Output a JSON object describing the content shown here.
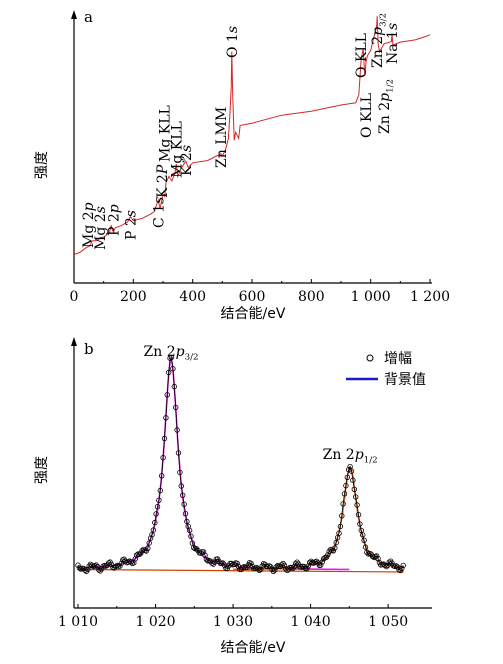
{
  "chart_data": [
    {
      "type": "line",
      "panel_label": "a",
      "ylabel": "强度",
      "xlabel": "结合能/eV",
      "xlim": [
        0,
        1200
      ],
      "xticks": [
        0,
        200,
        400,
        600,
        800,
        1000,
        1200
      ],
      "xtick_labels": [
        "0",
        "200",
        "400",
        "600",
        "800",
        "1 000",
        "1 200"
      ],
      "series_color": "#d62728",
      "x": [
        0,
        20,
        40,
        55,
        60,
        80,
        88,
        100,
        120,
        125,
        130,
        135,
        140,
        150,
        180,
        190,
        200,
        230,
        260,
        270,
        284,
        290,
        300,
        303,
        306,
        310,
        320,
        330,
        340,
        345,
        350,
        360,
        377,
        385,
        400,
        450,
        480,
        495,
        500,
        510,
        520,
        525,
        530,
        532,
        535,
        540,
        545,
        555,
        560,
        600,
        700,
        800,
        900,
        950,
        960,
        968,
        975,
        980,
        985,
        990,
        1000,
        1010,
        1020,
        1022,
        1025,
        1030,
        1045,
        1070,
        1072,
        1075,
        1100,
        1150,
        1180,
        1200
      ],
      "y": [
        0.04,
        0.06,
        0.08,
        0.1,
        0.12,
        0.13,
        0.14,
        0.15,
        0.17,
        0.22,
        0.18,
        0.19,
        0.2,
        0.21,
        0.23,
        0.27,
        0.24,
        0.26,
        0.28,
        0.3,
        0.36,
        0.32,
        0.39,
        0.4,
        0.38,
        0.47,
        0.5,
        0.48,
        0.52,
        0.58,
        0.5,
        0.55,
        0.59,
        0.56,
        0.58,
        0.6,
        0.62,
        0.64,
        0.62,
        0.66,
        0.72,
        0.86,
        1.02,
        1.24,
        0.98,
        0.72,
        0.76,
        0.73,
        0.8,
        0.82,
        0.86,
        0.89,
        0.92,
        0.94,
        0.98,
        1.2,
        1.25,
        1.1,
        1.18,
        1.22,
        1.24,
        1.32,
        1.38,
        1.45,
        1.28,
        1.24,
        1.28,
        1.3,
        1.34,
        1.28,
        1.29,
        1.31,
        1.32,
        1.34
      ],
      "annotations": [
        {
          "text": "Mg 2p",
          "x": 48
        },
        {
          "text": "Mg 2s",
          "x": 88
        },
        {
          "text": "P 2p",
          "x": 133
        },
        {
          "text": "P 2s",
          "x": 190
        },
        {
          "text": "C 1s",
          "x": 284
        },
        {
          "text": "K 2P",
          "x": 296
        },
        {
          "text": "Mg KLL",
          "x": 305
        },
        {
          "text": "Mg KLL",
          "x": 345
        },
        {
          "text": "K 2s",
          "x": 377
        },
        {
          "text": "Zn LMM",
          "x": 495
        },
        {
          "text": "O 1s",
          "x": 532
        },
        {
          "text": "O KLL",
          "x": 968
        },
        {
          "text": "O KLL",
          "x": 985
        },
        {
          "text": "Zn 2p3/2",
          "x": 1022
        },
        {
          "text": "Zn 2p1/2",
          "x": 1045
        },
        {
          "text": "Na 1s",
          "x": 1072
        }
      ]
    },
    {
      "type": "line",
      "panel_label": "b",
      "ylabel": "强度",
      "xlabel": "结合能/eV",
      "xlim": [
        1010,
        1055
      ],
      "xticks": [
        1010,
        1020,
        1030,
        1040,
        1050
      ],
      "xtick_labels": [
        "1 010",
        "1 020",
        "1 030",
        "1 040",
        "1 050"
      ],
      "legend": [
        {
          "label": "增幅",
          "marker": "circle"
        },
        {
          "label": "背景值",
          "color": "#1a1ac8"
        }
      ],
      "peak_labels": [
        {
          "text": "Zn 2p3/2",
          "x": 1022.0
        },
        {
          "text": "Zn 2p1/2",
          "x": 1045.1
        }
      ],
      "peaks": [
        {
          "name": "Zn 2p3/2",
          "center": 1022.0,
          "fwhm": 2.2,
          "height": 1.0,
          "color": "#e020e0"
        },
        {
          "name": "Zn 2p1/2",
          "center": 1045.1,
          "fwhm": 2.2,
          "height": 0.49,
          "color": "#e06020"
        }
      ],
      "background": {
        "x": [
          1010,
          1052
        ],
        "y": [
          0.012,
          0.0
        ],
        "color": "#1a1ac8"
      },
      "raw_range": [
        1010,
        1052
      ]
    }
  ],
  "text": {
    "ylabel_a": "强度",
    "xlabel_a": "结合能/eV",
    "panel_a": "a",
    "ylabel_b": "强度",
    "xlabel_b": "结合能/eV",
    "panel_b": "b",
    "legend_raw": "增幅",
    "legend_bg": "背景值"
  }
}
